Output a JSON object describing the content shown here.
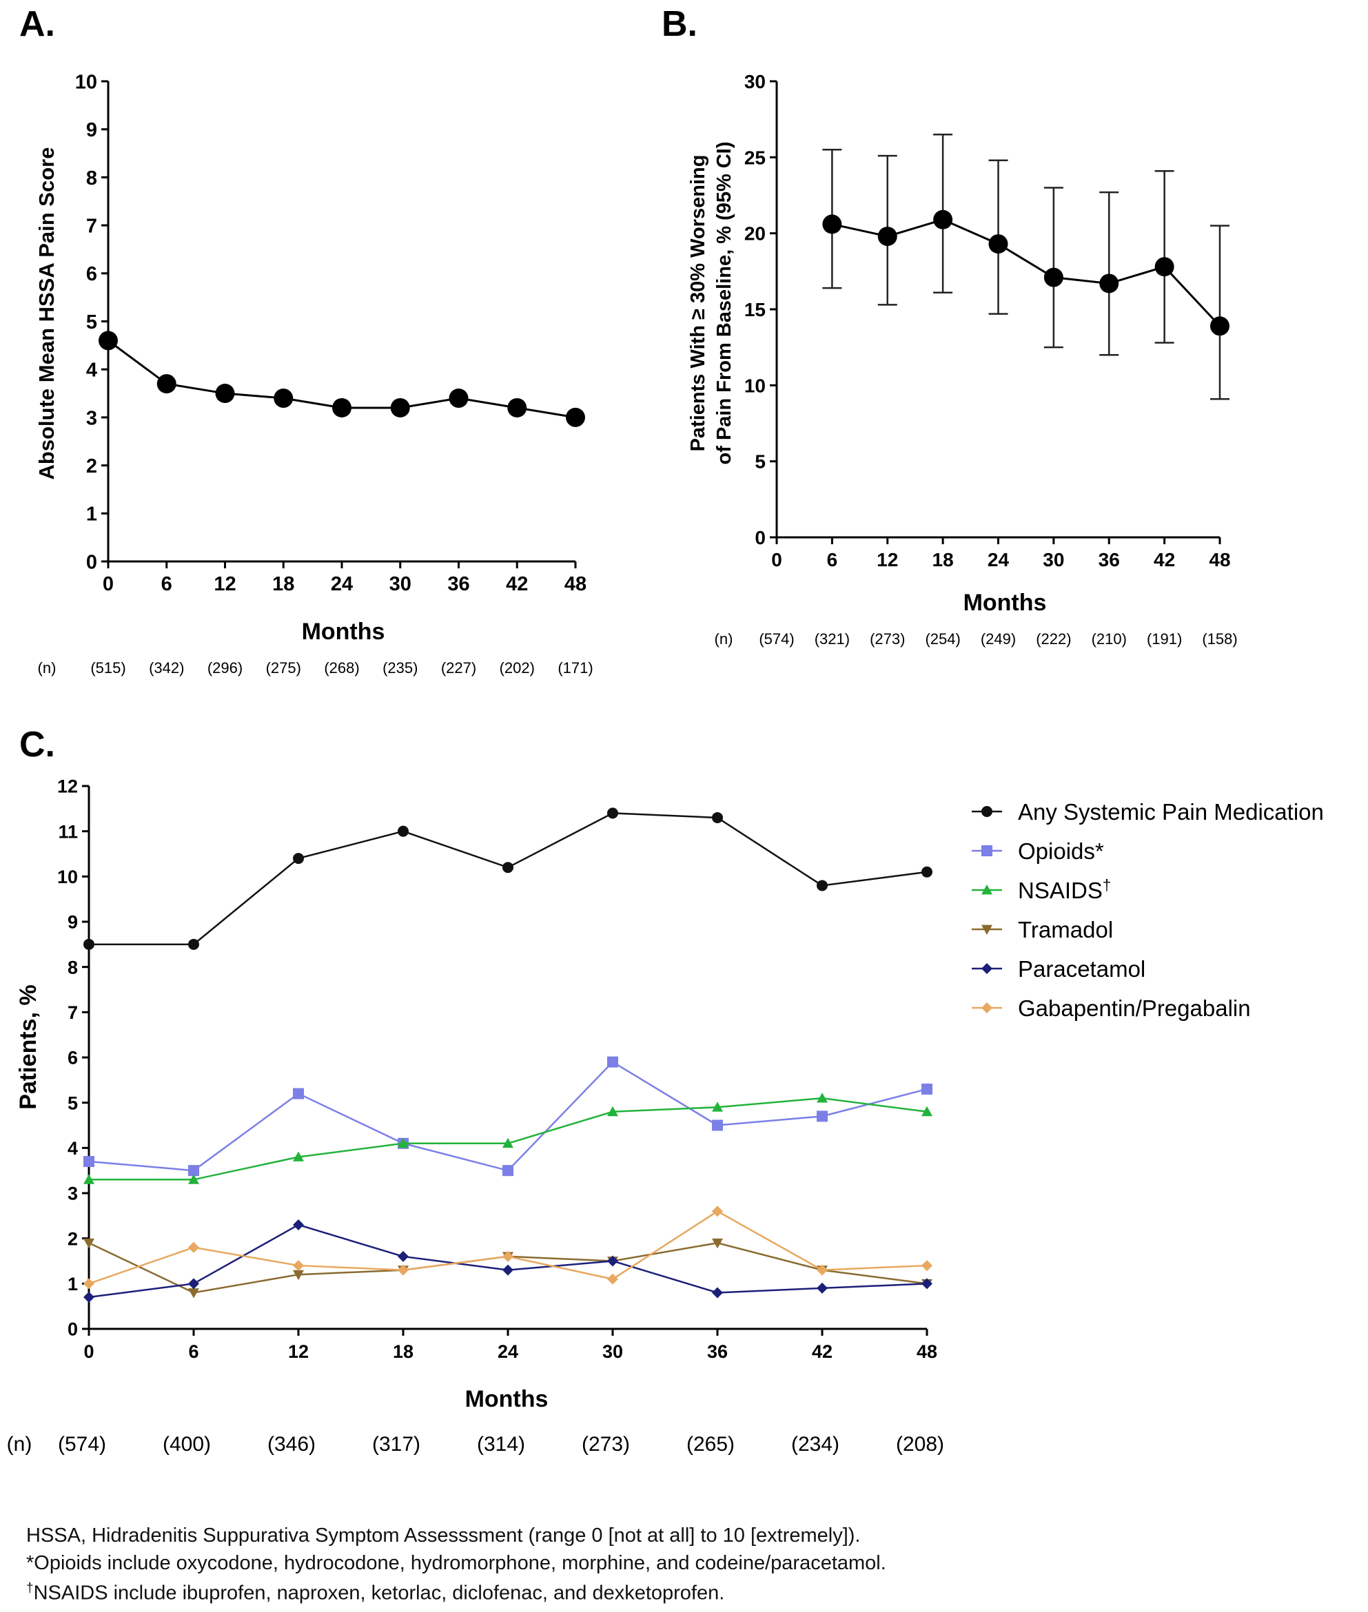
{
  "chart_data": [
    {
      "panel": "A.",
      "type": "line",
      "x": [
        0,
        6,
        12,
        18,
        24,
        30,
        36,
        42,
        48
      ],
      "series": [
        {
          "values": [
            4.6,
            3.7,
            3.5,
            3.4,
            3.2,
            3.2,
            3.4,
            3.2,
            3.0
          ]
        }
      ],
      "xlabel": "Months",
      "ylabel": "Absolute Mean HSSA Pain Score",
      "xlim": [
        0,
        48
      ],
      "ylim": [
        0,
        10
      ],
      "yticks": [
        0,
        1,
        2,
        3,
        4,
        5,
        6,
        7,
        8,
        9,
        10
      ],
      "n_label": "(n)",
      "n_values": [
        "(515)",
        "(342)",
        "(296)",
        "(275)",
        "(268)",
        "(235)",
        "(227)",
        "(202)",
        "(171)"
      ],
      "grid": false,
      "color": "#000000"
    },
    {
      "panel": "B.",
      "type": "line",
      "x": [
        6,
        12,
        18,
        24,
        30,
        36,
        42,
        48
      ],
      "series": [
        {
          "values": [
            20.6,
            19.8,
            20.9,
            19.3,
            17.1,
            16.7,
            17.8,
            13.9
          ],
          "ci_low": [
            16.4,
            15.3,
            16.1,
            14.7,
            12.5,
            12.0,
            12.8,
            9.1
          ],
          "ci_high": [
            25.5,
            25.1,
            26.5,
            24.8,
            23.0,
            22.7,
            24.1,
            20.5
          ]
        }
      ],
      "xticks": [
        0,
        6,
        12,
        18,
        24,
        30,
        36,
        42,
        48
      ],
      "xlabel": "Months",
      "ylabel": [
        "Patients With ≥ 30% Worsening",
        "of Pain From Baseline, % (95% CI)"
      ],
      "xlim": [
        0,
        48
      ],
      "ylim": [
        0,
        30
      ],
      "yticks": [
        0,
        5,
        10,
        15,
        20,
        25,
        30
      ],
      "n_label": "(n)",
      "n_values": [
        "(574)",
        "(321)",
        "(273)",
        "(254)",
        "(249)",
        "(222)",
        "(210)",
        "(191)",
        "(158)"
      ],
      "grid": false,
      "color": "#000000"
    },
    {
      "panel": "C.",
      "type": "line",
      "x": [
        0,
        6,
        12,
        18,
        24,
        30,
        36,
        42,
        48
      ],
      "series": [
        {
          "name": "Any Systemic Pain Medication",
          "marker": "circle",
          "color": "#111111",
          "values": [
            8.5,
            8.5,
            10.4,
            11.0,
            10.2,
            11.4,
            11.3,
            9.8,
            10.1
          ]
        },
        {
          "name": "Opioids*",
          "marker": "square",
          "color": "#7b7fe6",
          "values": [
            3.7,
            3.5,
            5.2,
            4.1,
            3.5,
            5.9,
            4.5,
            4.7,
            5.3
          ]
        },
        {
          "name": "NSAIDS",
          "name_sup": "†",
          "marker": "triangle-up",
          "color": "#22b33a",
          "values": [
            3.3,
            3.3,
            3.8,
            4.1,
            4.1,
            4.8,
            4.9,
            5.1,
            4.8
          ]
        },
        {
          "name": "Tramadol",
          "marker": "triangle-down",
          "color": "#8a6a2e",
          "values": [
            1.9,
            0.8,
            1.2,
            1.3,
            1.6,
            1.5,
            1.9,
            1.3,
            1.0
          ]
        },
        {
          "name": "Paracetamol",
          "marker": "diamond",
          "color": "#1c1f78",
          "values": [
            0.7,
            1.0,
            2.3,
            1.6,
            1.3,
            1.5,
            0.8,
            0.9,
            1.0
          ]
        },
        {
          "name": "Gabapentin/Pregabalin",
          "marker": "diamond",
          "color": "#e8a860",
          "values": [
            1.0,
            1.8,
            1.4,
            1.3,
            1.6,
            1.1,
            2.6,
            1.3,
            1.4
          ]
        }
      ],
      "xlabel": "Months",
      "ylabel": "Patients, %",
      "xlim": [
        0,
        48
      ],
      "ylim": [
        0,
        12
      ],
      "yticks": [
        0,
        1,
        2,
        3,
        4,
        5,
        6,
        7,
        8,
        9,
        10,
        11,
        12
      ],
      "n_label": "(n)",
      "n_values": [
        "(574)",
        "(400)",
        "(346)",
        "(317)",
        "(314)",
        "(273)",
        "(265)",
        "(234)",
        "(208)"
      ],
      "legend": "right",
      "grid": false
    }
  ],
  "footnotes": {
    "hssa": "HSSA, Hidradenitis Suppurativa Symptom Assesssment (range 0 [not at all] to 10 [extremely]).",
    "opioids_mark": "*",
    "opioids": "Opioids include oxycodone, hydrocodone, hydromorphone, morphine, and codeine/paracetamol.",
    "nsaids_mark": "†",
    "nsaids": "NSAIDS include ibuprofen, naproxen, ketorlac, diclofenac, and dexketoprofen."
  }
}
